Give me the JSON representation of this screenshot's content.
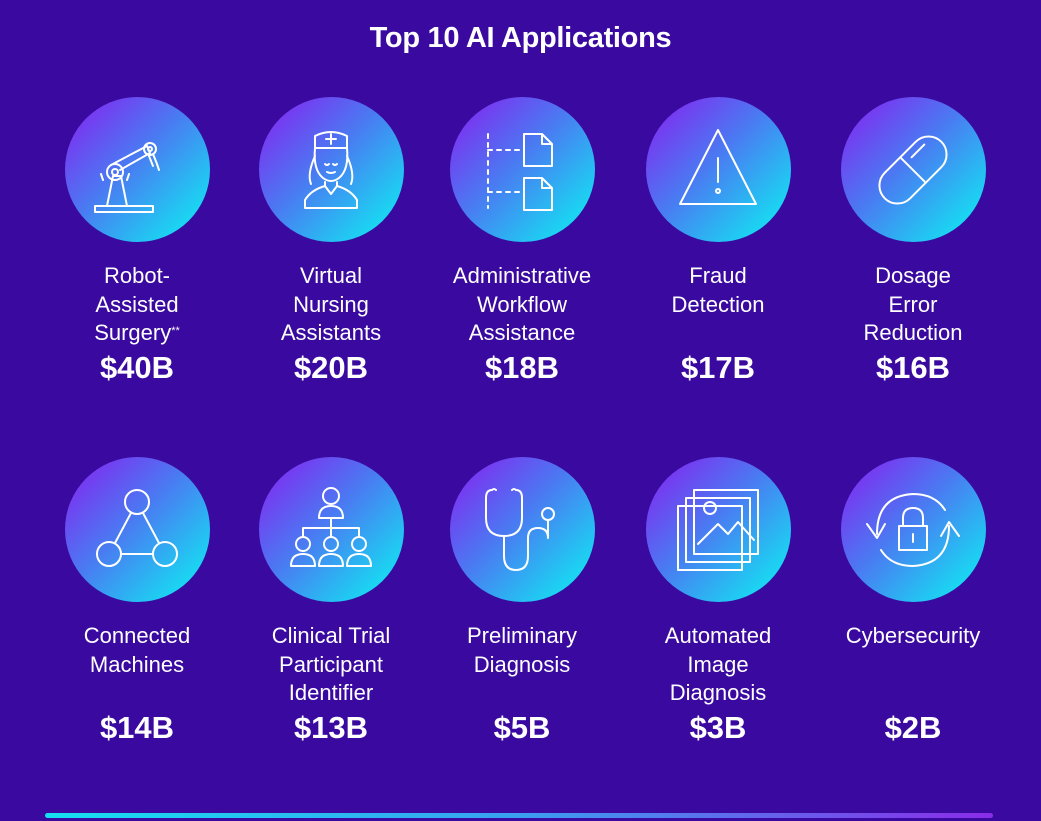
{
  "title": "Top 10 AI Applications",
  "items": [
    {
      "label_lines": [
        "Robot-",
        "Assisted",
        "Surgery"
      ],
      "footnote": "**",
      "value": "$40B",
      "icon": "robotic-arm-icon"
    },
    {
      "label_lines": [
        "Virtual",
        "Nursing",
        "Assistants"
      ],
      "value": "$20B",
      "icon": "nurse-icon"
    },
    {
      "label_lines": [
        "Administrative",
        "Workflow",
        "Assistance"
      ],
      "value": "$18B",
      "icon": "workflow-documents-icon"
    },
    {
      "label_lines": [
        "Fraud",
        "Detection"
      ],
      "value": "$17B",
      "icon": "warning-triangle-icon"
    },
    {
      "label_lines": [
        "Dosage",
        "Error",
        "Reduction"
      ],
      "value": "$16B",
      "icon": "pill-capsule-icon"
    },
    {
      "label_lines": [
        "Connected",
        "Machines"
      ],
      "value": "$14B",
      "icon": "network-nodes-icon"
    },
    {
      "label_lines": [
        "Clinical Trial",
        "Participant",
        "Identifier"
      ],
      "value": "$13B",
      "icon": "org-chart-people-icon"
    },
    {
      "label_lines": [
        "Preliminary",
        "Diagnosis"
      ],
      "value": "$5B",
      "icon": "stethoscope-icon"
    },
    {
      "label_lines": [
        "Automated",
        "Image",
        "Diagnosis"
      ],
      "value": "$3B",
      "icon": "image-stack-icon"
    },
    {
      "label_lines": [
        "Cybersecurity"
      ],
      "value": "$2B",
      "icon": "lock-refresh-icon"
    }
  ],
  "colors": {
    "background": "#3a0aa0",
    "circle_gradient_start": "#8a1cf0",
    "circle_gradient_end": "#12e8f0",
    "text": "#ffffff"
  }
}
